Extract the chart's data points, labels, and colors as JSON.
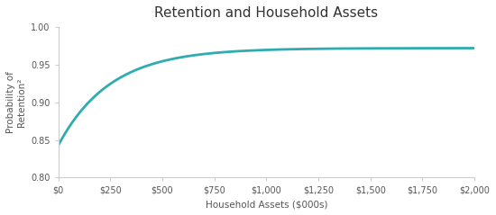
{
  "title": "Retention and Household Assets",
  "xlabel": "Household Assets ($000s)",
  "ylabel": "Probability of\nRetention²",
  "xlim": [
    0,
    2000
  ],
  "ylim": [
    0.8,
    1.0
  ],
  "yticks": [
    0.8,
    0.85,
    0.9,
    0.95,
    1.0
  ],
  "xticks": [
    0,
    250,
    500,
    750,
    1000,
    1250,
    1500,
    1750,
    2000
  ],
  "xtick_labels": [
    "$0",
    "$250",
    "$500",
    "$750",
    "$1,000",
    "$1,250",
    "$1,500",
    "$1,750",
    "$2,000"
  ],
  "line_color": "#2eacb0",
  "line_width": 2.0,
  "background_color": "#ffffff",
  "border_color": "#cccccc",
  "curve_start_y": 0.843,
  "curve_end_y": 0.962,
  "title_fontsize": 11,
  "label_fontsize": 7.5,
  "tick_fontsize": 7
}
